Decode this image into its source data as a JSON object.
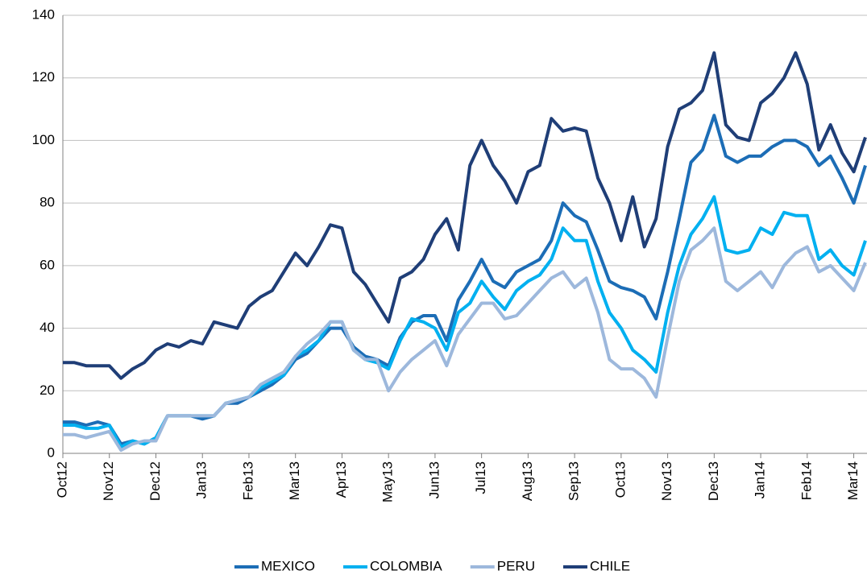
{
  "chart_data": {
    "type": "line",
    "categories": [
      "Oct12",
      null,
      null,
      null,
      "Nov12",
      null,
      null,
      null,
      "Dec12",
      null,
      null,
      null,
      "Jan13",
      null,
      null,
      null,
      "Feb13",
      null,
      null,
      null,
      "Mar13",
      null,
      null,
      null,
      "Apr13",
      null,
      null,
      null,
      "May13",
      null,
      null,
      null,
      "Jun13",
      null,
      null,
      null,
      "Jul13",
      null,
      null,
      null,
      "Aug13",
      null,
      null,
      null,
      "Sep13",
      null,
      null,
      null,
      "Oct13",
      null,
      null,
      null,
      "Nov13",
      null,
      null,
      null,
      "Dec13",
      null,
      null,
      null,
      "Jan14",
      null,
      null,
      null,
      "Feb14",
      null,
      null,
      null,
      "Mar14",
      null
    ],
    "series": [
      {
        "name": "MEXICO",
        "color": "#1c6db6",
        "values": [
          10,
          10,
          9,
          10,
          9,
          3,
          4,
          3,
          5,
          12,
          12,
          12,
          11,
          12,
          16,
          16,
          18,
          20,
          22,
          25,
          30,
          32,
          36,
          40,
          40,
          34,
          31,
          30,
          28,
          37,
          42,
          44,
          44,
          36,
          49,
          55,
          62,
          55,
          53,
          58,
          60,
          62,
          68,
          80,
          76,
          74,
          65,
          55,
          53,
          52,
          50,
          43,
          58,
          75,
          93,
          97,
          108,
          95,
          93,
          95,
          95,
          98,
          100,
          100,
          98,
          92,
          95,
          88,
          80,
          92
        ]
      },
      {
        "name": "COLOMBIA",
        "color": "#00b0f0",
        "values": [
          9,
          9,
          8,
          8,
          9,
          2,
          4,
          3,
          5,
          12,
          12,
          12,
          12,
          12,
          16,
          17,
          18,
          21,
          23,
          25,
          31,
          33,
          36,
          42,
          42,
          33,
          30,
          29,
          27,
          36,
          43,
          42,
          40,
          33,
          45,
          48,
          55,
          50,
          46,
          52,
          55,
          57,
          62,
          72,
          68,
          68,
          55,
          45,
          40,
          33,
          30,
          26,
          45,
          60,
          70,
          75,
          82,
          65,
          64,
          65,
          72,
          70,
          77,
          76,
          76,
          62,
          65,
          60,
          57,
          68
        ]
      },
      {
        "name": "PERU",
        "color": "#9db8dc",
        "values": [
          6,
          6,
          5,
          6,
          7,
          1,
          3,
          4,
          4,
          12,
          12,
          12,
          12,
          12,
          16,
          17,
          18,
          22,
          24,
          26,
          31,
          35,
          38,
          42,
          42,
          33,
          30,
          30,
          20,
          26,
          30,
          33,
          36,
          28,
          38,
          43,
          48,
          48,
          43,
          44,
          48,
          52,
          56,
          58,
          53,
          56,
          45,
          30,
          27,
          27,
          24,
          18,
          37,
          55,
          65,
          68,
          72,
          55,
          52,
          55,
          58,
          53,
          60,
          64,
          66,
          58,
          60,
          56,
          52,
          61
        ]
      },
      {
        "name": "CHILE",
        "color": "#1f3e77",
        "values": [
          29,
          29,
          28,
          28,
          28,
          24,
          27,
          29,
          33,
          35,
          34,
          36,
          35,
          42,
          41,
          40,
          47,
          50,
          52,
          58,
          64,
          60,
          66,
          73,
          72,
          58,
          54,
          48,
          42,
          56,
          58,
          62,
          70,
          75,
          65,
          92,
          100,
          92,
          87,
          80,
          90,
          92,
          107,
          103,
          104,
          103,
          88,
          80,
          68,
          82,
          66,
          75,
          98,
          110,
          112,
          116,
          128,
          105,
          101,
          100,
          112,
          115,
          120,
          128,
          118,
          97,
          105,
          96,
          90,
          101
        ]
      }
    ],
    "ylim": [
      0,
      140
    ],
    "yticks": [
      0,
      20,
      40,
      60,
      80,
      100,
      120,
      140
    ],
    "grid": true,
    "legend": "bottom"
  }
}
